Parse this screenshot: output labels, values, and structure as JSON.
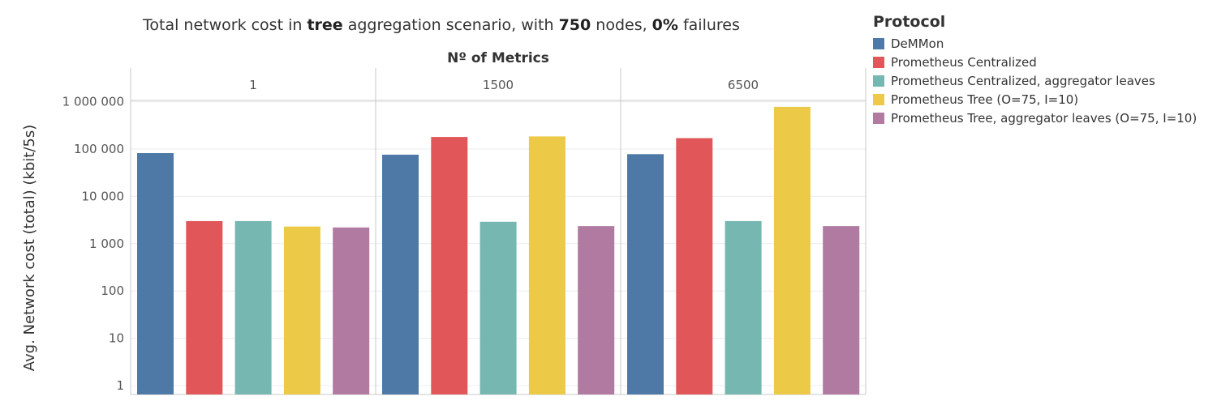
{
  "title_parts": {
    "p1": "Total network cost in ",
    "p2": "tree",
    "p3": " aggregation scenario, with ",
    "p4": "750",
    "p5": " nodes, ",
    "p6": "0%",
    "p7": " failures"
  },
  "legend": {
    "title": "Protocol",
    "items": [
      {
        "label": "DeMMon",
        "color": "#4e79a7"
      },
      {
        "label": "Prometheus Centralized",
        "color": "#e15759"
      },
      {
        "label": "Prometheus Centralized, aggregator leaves",
        "color": "#76b7b2"
      },
      {
        "label": "Prometheus Tree (O=75, I=10)",
        "color": "#edc948"
      },
      {
        "label": "Prometheus Tree, aggregator leaves (O=75, I=10)",
        "color": "#b07aa1"
      }
    ]
  },
  "chart_data": {
    "type": "bar",
    "scale": "log",
    "xlabel": "Nº of Metrics",
    "ylabel": "Avg. Network cost (total) (kbit/5s)",
    "yticks": [
      1,
      10,
      100,
      1000,
      10000,
      100000,
      1000000
    ],
    "ytick_labels": [
      "1",
      "10",
      "100",
      "1 000",
      "10 000",
      "100 000",
      "1 000 000"
    ],
    "ylim": [
      0.5,
      5000000
    ],
    "grid": true,
    "legend_position": "right",
    "panels": [
      "1",
      "1500",
      "6500"
    ],
    "series": [
      {
        "name": "DeMMon",
        "values": [
          82000,
          76000,
          78000
        ]
      },
      {
        "name": "Prometheus Centralized",
        "values": [
          3000,
          180000,
          170000
        ]
      },
      {
        "name": "Prometheus Centralized, aggregator leaves",
        "values": [
          3000,
          2900,
          3000
        ]
      },
      {
        "name": "Prometheus Tree (O=75, I=10)",
        "values": [
          2300,
          185000,
          780000
        ]
      },
      {
        "name": "Prometheus Tree, aggregator leaves (O=75, I=10)",
        "values": [
          2200,
          2350,
          2350
        ]
      }
    ]
  }
}
